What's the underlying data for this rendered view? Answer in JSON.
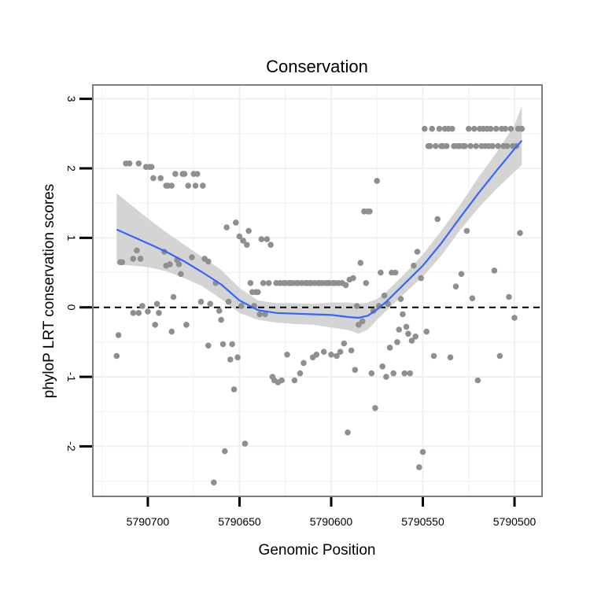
{
  "chart_data": {
    "type": "scatter",
    "title": "Conservation",
    "xlabel": "Genomic Position",
    "ylabel": "phyloP LRT conservation scores",
    "x_reversed": true,
    "xlim": [
      5790730,
      5790485
    ],
    "ylim": [
      -2.72,
      3.2
    ],
    "x_ticks": [
      5790700,
      5790650,
      5790600,
      5790550,
      5790500
    ],
    "x_tick_labels": [
      "5790700",
      "5790650",
      "5790600",
      "5790550",
      "5790500"
    ],
    "y_ticks": [
      -2,
      -1,
      0,
      1,
      2,
      3
    ],
    "y_tick_labels": [
      "-2",
      "-1",
      "0",
      "1",
      "2",
      "3"
    ],
    "reference_line": {
      "y": 0,
      "style": "dashed"
    },
    "grid": true,
    "colors": {
      "points": "#8f8f8f",
      "smooth": "#3366ff",
      "band": "#d4d4d4",
      "panel_border": "#7f7f7f",
      "grid": "#f0f0f0"
    },
    "series": [
      {
        "name": "scores",
        "kind": "points",
        "points": [
          [
            5790717,
            -0.7
          ],
          [
            5790716,
            -0.4
          ],
          [
            5790715,
            0.65
          ],
          [
            5790714,
            0.65
          ],
          [
            5790712,
            2.07
          ],
          [
            5790710,
            2.07
          ],
          [
            5790708,
            0.7
          ],
          [
            5790708,
            -0.08
          ],
          [
            5790706,
            0.82
          ],
          [
            5790705,
            -0.08
          ],
          [
            5790705,
            2.07
          ],
          [
            5790704,
            0.7
          ],
          [
            5790703,
            0.02
          ],
          [
            5790701,
            2.02
          ],
          [
            5790700,
            -0.06
          ],
          [
            5790699,
            2.02
          ],
          [
            5790698,
            2.02
          ],
          [
            5790697,
            1.86
          ],
          [
            5790696,
            -0.25
          ],
          [
            5790695,
            0.05
          ],
          [
            5790694,
            -0.08
          ],
          [
            5790693,
            1.86
          ],
          [
            5790691,
            0.8
          ],
          [
            5790690,
            1.75
          ],
          [
            5790690,
            0.6
          ],
          [
            5790689,
            1.75
          ],
          [
            5790688,
            0.62
          ],
          [
            5790687,
            1.75
          ],
          [
            5790687,
            -0.35
          ],
          [
            5790686,
            0.15
          ],
          [
            5790685,
            1.92
          ],
          [
            5790684,
            0.68
          ],
          [
            5790683,
            0.62
          ],
          [
            5790682,
            0.48
          ],
          [
            5790681,
            1.92
          ],
          [
            5790680,
            1.92
          ],
          [
            5790679,
            -0.25
          ],
          [
            5790678,
            1.75
          ],
          [
            5790676,
            0.72
          ],
          [
            5790675,
            1.92
          ],
          [
            5790674,
            1.75
          ],
          [
            5790673,
            1.92
          ],
          [
            5790671,
            0.08
          ],
          [
            5790670,
            1.75
          ],
          [
            5790669,
            0.7
          ],
          [
            5790667,
            -0.55
          ],
          [
            5790667,
            0.66
          ],
          [
            5790666,
            0.05
          ],
          [
            5790664,
            -2.52
          ],
          [
            5790663,
            0.35
          ],
          [
            5790661,
            -0.05
          ],
          [
            5790660,
            -0.18
          ],
          [
            5790659,
            -0.53
          ],
          [
            5790658,
            -2.07
          ],
          [
            5790657,
            1.15
          ],
          [
            5790656,
            0.08
          ],
          [
            5790655,
            -0.75
          ],
          [
            5790654,
            -0.53
          ],
          [
            5790653,
            -1.18
          ],
          [
            5790652,
            1.22
          ],
          [
            5790651,
            -0.72
          ],
          [
            5790650,
            1.02
          ],
          [
            5790649,
            0.02
          ],
          [
            5790648,
            0.96
          ],
          [
            5790647,
            -1.96
          ],
          [
            5790646,
            0.9
          ],
          [
            5790645,
            1.1
          ],
          [
            5790644,
            0.35
          ],
          [
            5790643,
            0.22
          ],
          [
            5790642,
            0.02
          ],
          [
            5790641,
            0.22
          ],
          [
            5790640,
            0.22
          ],
          [
            5790639,
            -0.1
          ],
          [
            5790638,
            0.98
          ],
          [
            5790637,
            0.35
          ],
          [
            5790636,
            -0.1
          ],
          [
            5790635,
            0.98
          ],
          [
            5790634,
            0.35
          ],
          [
            5790633,
            0.9
          ],
          [
            5790632,
            -1.0
          ],
          [
            5790631,
            -1.05
          ],
          [
            5790630,
            0.35
          ],
          [
            5790629,
            -1.08
          ],
          [
            5790628,
            0.35
          ],
          [
            5790627,
            -1.05
          ],
          [
            5790626,
            0.35
          ],
          [
            5790625,
            0.35
          ],
          [
            5790624,
            -0.68
          ],
          [
            5790623,
            0.35
          ],
          [
            5790622,
            0.35
          ],
          [
            5790621,
            0.35
          ],
          [
            5790620,
            -1.05
          ],
          [
            5790619,
            0.35
          ],
          [
            5790618,
            0.35
          ],
          [
            5790617,
            -0.95
          ],
          [
            5790616,
            0.35
          ],
          [
            5790615,
            -0.8
          ],
          [
            5790614,
            0.35
          ],
          [
            5790613,
            0.35
          ],
          [
            5790612,
            0.35
          ],
          [
            5790611,
            0.35
          ],
          [
            5790610,
            -0.72
          ],
          [
            5790609,
            0.35
          ],
          [
            5790608,
            -0.68
          ],
          [
            5790607,
            0.35
          ],
          [
            5790606,
            0.35
          ],
          [
            5790605,
            0.35
          ],
          [
            5790604,
            -0.64
          ],
          [
            5790603,
            0.35
          ],
          [
            5790602,
            0.35
          ],
          [
            5790601,
            0.35
          ],
          [
            5790600,
            -0.68
          ],
          [
            5790599,
            0.35
          ],
          [
            5790598,
            0.35
          ],
          [
            5790597,
            -0.7
          ],
          [
            5790596,
            0.35
          ],
          [
            5790595,
            -0.64
          ],
          [
            5790594,
            0.35
          ],
          [
            5790593,
            -0.52
          ],
          [
            5790592,
            0.32
          ],
          [
            5790591,
            -1.8
          ],
          [
            5790590,
            0.4
          ],
          [
            5790589,
            -0.62
          ],
          [
            5790588,
            0.42
          ],
          [
            5790587,
            -0.9
          ],
          [
            5790586,
            0.02
          ],
          [
            5790585,
            -0.25
          ],
          [
            5790584,
            0.64
          ],
          [
            5790583,
            -0.2
          ],
          [
            5790582,
            1.38
          ],
          [
            5790581,
            0.35
          ],
          [
            5790580,
            1.38
          ],
          [
            5790579,
            1.38
          ],
          [
            5790578,
            -0.95
          ],
          [
            5790577,
            -0.05
          ],
          [
            5790576,
            -1.45
          ],
          [
            5790575,
            1.82
          ],
          [
            5790574,
            0.02
          ],
          [
            5790573,
            0.5
          ],
          [
            5790572,
            -0.85
          ],
          [
            5790571,
            0.17
          ],
          [
            5790570,
            -1.0
          ],
          [
            5790569,
            0.05
          ],
          [
            5790568,
            -0.58
          ],
          [
            5790567,
            0.5
          ],
          [
            5790566,
            -0.95
          ],
          [
            5790565,
            0.5
          ],
          [
            5790564,
            -0.5
          ],
          [
            5790563,
            -0.32
          ],
          [
            5790562,
            0.12
          ],
          [
            5790561,
            -0.1
          ],
          [
            5790560,
            -0.95
          ],
          [
            5790559,
            -0.28
          ],
          [
            5790558,
            -0.38
          ],
          [
            5790557,
            -0.95
          ],
          [
            5790556,
            -0.48
          ],
          [
            5790555,
            0.6
          ],
          [
            5790554,
            -0.42
          ],
          [
            5790553,
            0.8
          ],
          [
            5790552,
            -2.3
          ],
          [
            5790551,
            0.42
          ],
          [
            5790550,
            -2.08
          ],
          [
            5790549,
            2.57
          ],
          [
            5790548,
            -0.35
          ],
          [
            5790547,
            2.32
          ],
          [
            5790546,
            2.32
          ],
          [
            5790545,
            2.57
          ],
          [
            5790544,
            -0.7
          ],
          [
            5790543,
            2.32
          ],
          [
            5790542,
            1.27
          ],
          [
            5790541,
            2.57
          ],
          [
            5790540,
            2.32
          ],
          [
            5790539,
            2.32
          ],
          [
            5790538,
            2.57
          ],
          [
            5790537,
            2.32
          ],
          [
            5790536,
            2.57
          ],
          [
            5790535,
            -0.72
          ],
          [
            5790534,
            2.57
          ],
          [
            5790533,
            2.32
          ],
          [
            5790532,
            0.3
          ],
          [
            5790531,
            2.32
          ],
          [
            5790530,
            2.32
          ],
          [
            5790529,
            0.48
          ],
          [
            5790528,
            2.32
          ],
          [
            5790527,
            2.32
          ],
          [
            5790526,
            1.1
          ],
          [
            5790525,
            2.57
          ],
          [
            5790524,
            2.32
          ],
          [
            5790523,
            0.13
          ],
          [
            5790522,
            2.57
          ],
          [
            5790521,
            2.32
          ],
          [
            5790520,
            -1.05
          ],
          [
            5790519,
            2.57
          ],
          [
            5790518,
            2.32
          ],
          [
            5790517,
            2.57
          ],
          [
            5790516,
            2.32
          ],
          [
            5790515,
            2.57
          ],
          [
            5790514,
            2.32
          ],
          [
            5790513,
            2.57
          ],
          [
            5790512,
            2.32
          ],
          [
            5790511,
            0.53
          ],
          [
            5790510,
            2.57
          ],
          [
            5790509,
            2.32
          ],
          [
            5790508,
            -0.7
          ],
          [
            5790507,
            2.57
          ],
          [
            5790506,
            2.32
          ],
          [
            5790505,
            2.57
          ],
          [
            5790504,
            2.32
          ],
          [
            5790503,
            0.15
          ],
          [
            5790502,
            2.57
          ],
          [
            5790501,
            2.32
          ],
          [
            5790500,
            -0.15
          ],
          [
            5790499,
            2.32
          ],
          [
            5790498,
            2.57
          ],
          [
            5790497,
            1.07
          ],
          [
            5790496,
            2.57
          ]
        ]
      },
      {
        "name": "loess fit",
        "kind": "smooth",
        "x": [
          5790717,
          5790700,
          5790690,
          5790680,
          5790670,
          5790660,
          5790650,
          5790640,
          5790630,
          5790620,
          5790610,
          5790600,
          5790590,
          5790585,
          5790580,
          5790575,
          5790570,
          5790560,
          5790550,
          5790540,
          5790530,
          5790520,
          5790510,
          5790500,
          5790496
        ],
        "y": [
          1.12,
          0.92,
          0.8,
          0.66,
          0.5,
          0.33,
          0.1,
          -0.04,
          -0.08,
          -0.09,
          -0.1,
          -0.11,
          -0.14,
          -0.15,
          -0.12,
          -0.03,
          0.08,
          0.34,
          0.6,
          0.92,
          1.28,
          1.63,
          1.96,
          2.28,
          2.4
        ],
        "lower": [
          0.62,
          0.58,
          0.52,
          0.42,
          0.3,
          0.12,
          -0.08,
          -0.18,
          -0.22,
          -0.24,
          -0.25,
          -0.29,
          -0.33,
          -0.38,
          -0.32,
          -0.18,
          -0.05,
          0.2,
          0.44,
          0.74,
          1.1,
          1.42,
          1.7,
          1.95,
          2.05
        ],
        "upper": [
          1.64,
          1.28,
          1.08,
          0.9,
          0.72,
          0.54,
          0.28,
          0.1,
          0.06,
          0.06,
          0.05,
          0.07,
          0.07,
          0.05,
          0.07,
          0.12,
          0.22,
          0.48,
          0.76,
          1.1,
          1.46,
          1.86,
          2.22,
          2.62,
          2.9
        ]
      }
    ]
  }
}
